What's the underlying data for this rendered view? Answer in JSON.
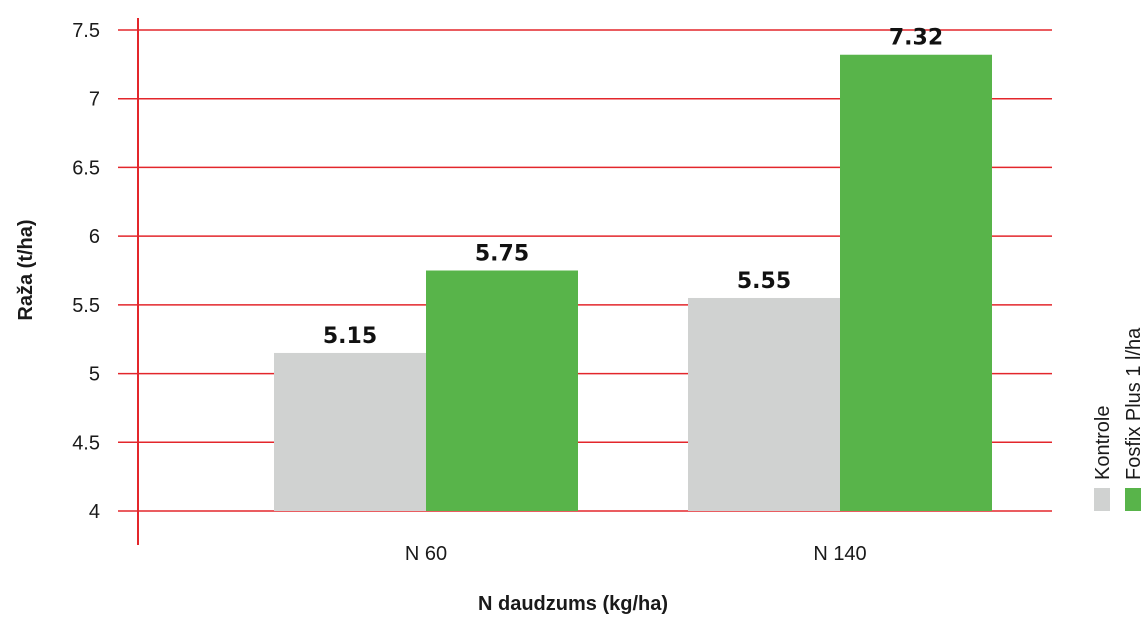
{
  "chart_data": {
    "type": "bar",
    "xlabel": "N daudzums (kg/ha)",
    "ylabel": "Raža (t/ha)",
    "categories": [
      "N 60",
      "N 140"
    ],
    "ylim": [
      4,
      7.5
    ],
    "yticks": [
      "4",
      "4.5",
      "5",
      "5.5",
      "6",
      "6.5",
      "7",
      "7.5"
    ],
    "grid": true,
    "legend_position": "right",
    "series": [
      {
        "name": "Kontrole",
        "color": "#d0d2d1",
        "values": [
          5.15,
          5.55
        ],
        "labels": [
          "5.15",
          "5.55"
        ]
      },
      {
        "name": "Fosfix Plus 1 l/ha",
        "color": "#58b44a",
        "values": [
          5.75,
          7.32
        ],
        "labels": [
          "5.75",
          "7.32"
        ]
      }
    ],
    "colors": {
      "grid": "#e3262b",
      "axis": "#e3262b"
    }
  }
}
